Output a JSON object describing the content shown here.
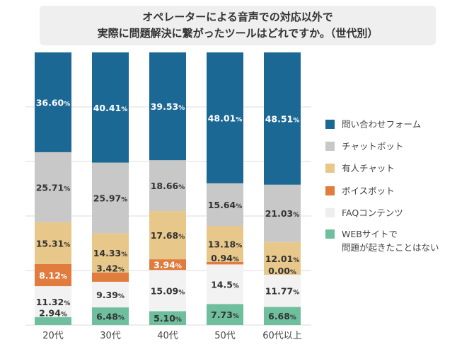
{
  "title": {
    "line1": "オペレーターによる音声での対応以外で",
    "line2": "実際に問題解決に繋がったツールはどれですか。（世代別）"
  },
  "chart_data": {
    "type": "bar",
    "stacked": true,
    "categories": [
      "20代",
      "30代",
      "40代",
      "50代",
      "60代以上"
    ],
    "ylim": [
      0,
      100
    ],
    "series": [
      {
        "name": "WEBサイトで\n問題が起きたことはない",
        "color": "#6fbf9f",
        "labels": [
          "2.94",
          "6.48",
          "5.10",
          "7.73",
          "6.68"
        ],
        "values": [
          2.94,
          6.48,
          5.1,
          7.73,
          6.68
        ]
      },
      {
        "name": "FAQコンテンツ",
        "color": "#f2f2f2",
        "labels": [
          "11.32",
          "9.39",
          "15.09",
          "14.5",
          "11.77"
        ],
        "values": [
          11.32,
          9.39,
          15.09,
          14.5,
          11.77
        ]
      },
      {
        "name": "ボイスボット",
        "color": "#e07c3e",
        "labels": [
          "8.12",
          "3.42",
          "3.94",
          "0.94",
          "0.00"
        ],
        "values": [
          8.12,
          3.42,
          3.94,
          0.94,
          0.0
        ]
      },
      {
        "name": "有人チャット",
        "color": "#e8c88a",
        "labels": [
          "15.31",
          "14.33",
          "17.68",
          "13.18",
          "12.01"
        ],
        "values": [
          15.31,
          14.33,
          17.68,
          13.18,
          12.01
        ]
      },
      {
        "name": "チャットボット",
        "color": "#c8c8c8",
        "labels": [
          "25.71",
          "25.97",
          "18.66",
          "15.64",
          "21.03"
        ],
        "values": [
          25.71,
          25.97,
          18.66,
          15.64,
          21.03
        ]
      },
      {
        "name": "問い合わせフォーム",
        "color": "#1b6894",
        "labels": [
          "36.60",
          "40.41",
          "39.53",
          "48.01",
          "48.51"
        ],
        "values": [
          36.6,
          40.41,
          39.53,
          48.01,
          48.51
        ]
      }
    ],
    "value_suffix": "%",
    "legend_order": [
      "問い合わせフォーム",
      "チャットボット",
      "有人チャット",
      "ボイスボット",
      "FAQコンテンツ",
      "WEBサイトで\n問題が起きたことはない"
    ],
    "legend_position": "right"
  }
}
